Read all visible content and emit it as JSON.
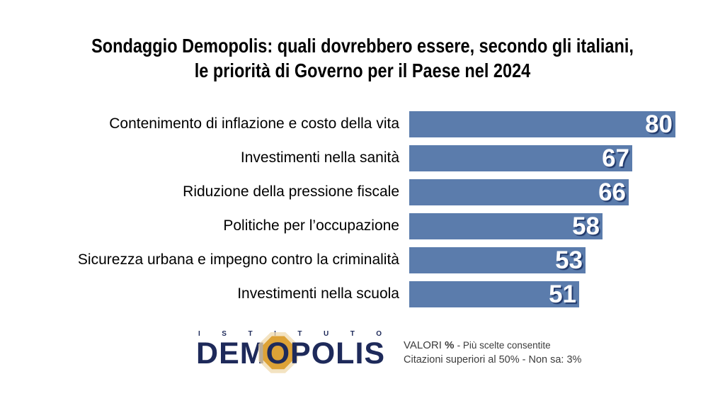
{
  "title": {
    "line1": "Sondaggio Demopolis: quali dovrebbero essere, secondo gli italiani,",
    "line2": "le priorità di Governo per il Paese nel 2024"
  },
  "chart_data": {
    "type": "bar",
    "orientation": "horizontal",
    "title": "Sondaggio Demopolis: quali dovrebbero essere, secondo gli italiani, le priorità di Governo per il Paese nel 2024",
    "categories": [
      "Contenimento di inflazione e costo della vita",
      "Investimenti nella sanità",
      "Riduzione della pressione fiscale",
      "Politiche per l’occupazione",
      "Sicurezza urbana e impegno contro la criminalità",
      "Investimenti nella scuola"
    ],
    "values": [
      80,
      67,
      66,
      58,
      53,
      51
    ],
    "unit": "percent",
    "xlim": [
      0,
      80
    ],
    "grid": false,
    "legend_position": "none",
    "bar_color": "#5b7cac",
    "value_label_color": "#ffffff",
    "value_shadow_color": "#20386a"
  },
  "footer": {
    "logo": {
      "istituto": "ISTITUTO",
      "name": "DEMOPOLIS",
      "navy": "#1e2a5a",
      "gold": "#dda236"
    },
    "note": {
      "valori": "VALORI",
      "percent": "%",
      "line1_rest": "- Più scelte consentite",
      "line2": "Citazioni superiori al 50% - Non sa: 3%"
    }
  }
}
